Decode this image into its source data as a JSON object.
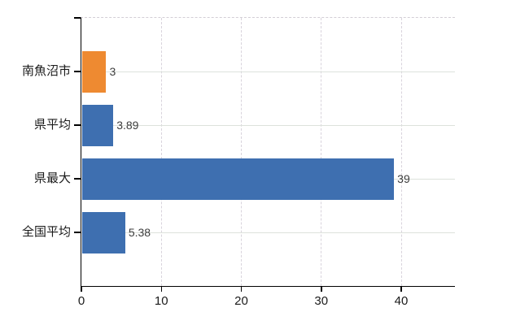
{
  "chart_data": {
    "type": "bar",
    "orientation": "horizontal",
    "title": "",
    "categories": [
      "南魚沼市",
      "県平均",
      "県最大",
      "全国平均"
    ],
    "values": [
      3,
      3.89,
      39,
      5.38
    ],
    "value_labels": [
      "3",
      "3.89",
      "39",
      "5.38"
    ],
    "bar_colors": [
      "#ee8a31",
      "#3e6fb0",
      "#3e6fb0",
      "#3e6fb0"
    ],
    "x_tick_labels": [
      "0",
      "10",
      "20",
      "30",
      "40"
    ],
    "x_tick_values": [
      0,
      10,
      20,
      30,
      40
    ],
    "xlim": [
      0,
      46.8
    ],
    "grid": "on",
    "legend": "none"
  },
  "colors": {
    "background": "#ffffff",
    "axis": "#000000",
    "grid_horizontal": "#dde2dc",
    "grid_vertical": "#d8d3dc",
    "plot_top_border": "#d3ced6",
    "bar_blue": "#3e6fb0",
    "bar_orange": "#ee8a31",
    "category_text": "#1a1a1a",
    "tick_text": "#1a1a1a",
    "value_text": "#3d3d3d"
  }
}
